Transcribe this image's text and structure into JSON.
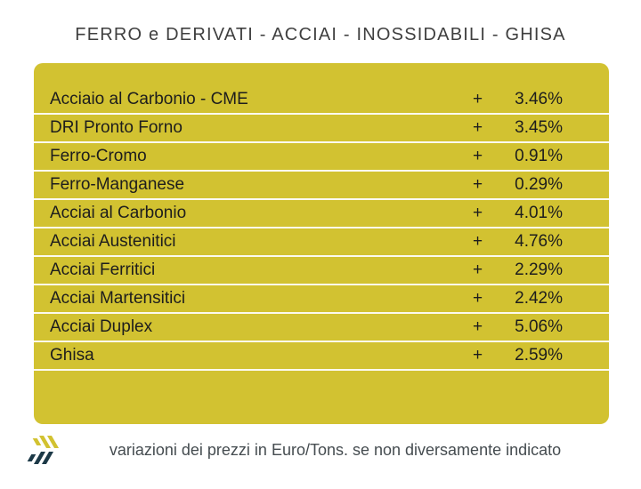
{
  "title": "FERRO e DERIVATI - ACCIAI - INOSSIDABILI - GHISA",
  "colors": {
    "panel_yellow": "#d2c231",
    "separator_white": "#ffffff",
    "logo_navy": "#1c3947",
    "logo_yellow": "#d2c231",
    "title_gray": "#3f3f3f",
    "row_text_dark": "#1d1d1d",
    "caption_gray": "#454c50"
  },
  "chart_data": {
    "type": "table",
    "title": "FERRO e DERIVATI - ACCIAI - INOSSIDABILI - GHISA",
    "columns": [
      "material",
      "direction",
      "variation_pct"
    ],
    "rows": [
      {
        "label": "Acciaio al Carbonio - CME",
        "sign": "+",
        "value": "3.46%",
        "value_num": 3.46
      },
      {
        "label": "DRI Pronto Forno",
        "sign": "+",
        "value": "3.45%",
        "value_num": 3.45
      },
      {
        "label": "Ferro-Cromo",
        "sign": "+",
        "value": "0.91%",
        "value_num": 0.91
      },
      {
        "label": "Ferro-Manganese",
        "sign": "+",
        "value": "0.29%",
        "value_num": 0.29
      },
      {
        "label": "Acciai al Carbonio",
        "sign": "+",
        "value": "4.01%",
        "value_num": 4.01
      },
      {
        "label": "Acciai Austenitici",
        "sign": "+",
        "value": "4.76%",
        "value_num": 4.76
      },
      {
        "label": "Acciai Ferritici",
        "sign": "+",
        "value": "2.29%",
        "value_num": 2.29
      },
      {
        "label": "Acciai Martensitici",
        "sign": "+",
        "value": "2.42%",
        "value_num": 2.42
      },
      {
        "label": "Acciai Duplex",
        "sign": "+",
        "value": "5.06%",
        "value_num": 5.06
      },
      {
        "label": "Ghisa",
        "sign": "+",
        "value": "2.59%",
        "value_num": 2.59
      }
    ],
    "footnote": "variazioni dei prezzi in Euro/Tons. se non diversamente indicato"
  }
}
